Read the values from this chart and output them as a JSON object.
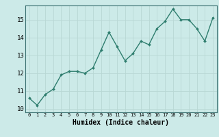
{
  "x": [
    0,
    1,
    2,
    3,
    4,
    5,
    6,
    7,
    8,
    9,
    10,
    11,
    12,
    13,
    14,
    15,
    16,
    17,
    18,
    19,
    20,
    21,
    22,
    23
  ],
  "y": [
    10.6,
    10.2,
    10.8,
    11.1,
    11.9,
    12.1,
    12.1,
    12.0,
    12.3,
    13.3,
    14.3,
    13.5,
    12.7,
    13.1,
    13.8,
    13.6,
    14.5,
    14.9,
    15.6,
    15.0,
    15.0,
    14.5,
    13.8,
    15.1
  ],
  "line_color": "#2e7d6e",
  "marker": "D",
  "marker_size": 2.0,
  "linewidth": 1.0,
  "xlabel": "Humidex (Indice chaleur)",
  "xlabel_fontsize": 7,
  "xlim": [
    -0.5,
    23.5
  ],
  "ylim": [
    9.8,
    15.8
  ],
  "yticks": [
    10,
    11,
    12,
    13,
    14,
    15
  ],
  "xticks": [
    0,
    1,
    2,
    3,
    4,
    5,
    6,
    7,
    8,
    9,
    10,
    11,
    12,
    13,
    14,
    15,
    16,
    17,
    18,
    19,
    20,
    21,
    22,
    23
  ],
  "xtick_fontsize": 5.0,
  "ytick_fontsize": 6.5,
  "bg_color": "#cceae8",
  "grid_color": "#b8d8d4",
  "grid_linewidth": 0.6,
  "spine_color": "#3a7070"
}
